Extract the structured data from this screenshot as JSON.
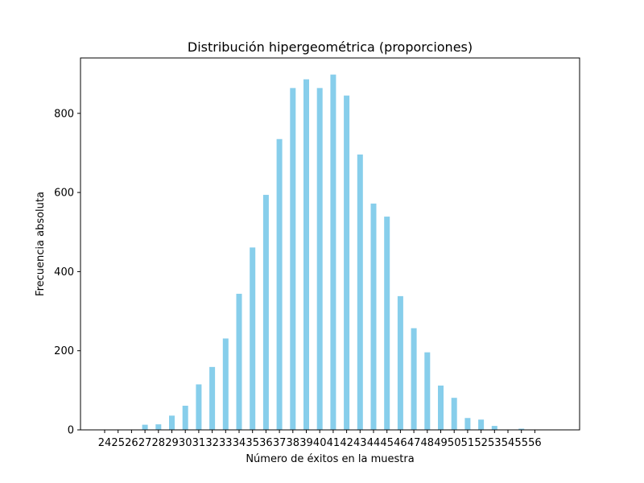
{
  "chart_data": {
    "type": "bar",
    "title": "Distribución hipergeométrica (proporciones)",
    "xlabel": "Número de éxitos en la muestra",
    "ylabel": "Frecuencia absoluta",
    "categories": [
      "24",
      "25",
      "26",
      "27",
      "28",
      "29",
      "30",
      "31",
      "32",
      "33",
      "34",
      "35",
      "36",
      "37",
      "38",
      "39",
      "40",
      "41",
      "42",
      "43",
      "44",
      "45",
      "46",
      "47",
      "48",
      "49",
      "50",
      "51",
      "52",
      "53",
      "54",
      "55",
      "56"
    ],
    "values": [
      1,
      1,
      1,
      13,
      14,
      36,
      61,
      115,
      159,
      231,
      344,
      461,
      594,
      735,
      864,
      886,
      864,
      898,
      845,
      696,
      572,
      539,
      338,
      257,
      196,
      112,
      81,
      30,
      26,
      10,
      1,
      3,
      1
    ],
    "ylim": [
      0,
      940
    ],
    "yticks": [
      0,
      200,
      400,
      600,
      800
    ],
    "color": "#87CEEB",
    "grid": false,
    "legend": "none"
  }
}
